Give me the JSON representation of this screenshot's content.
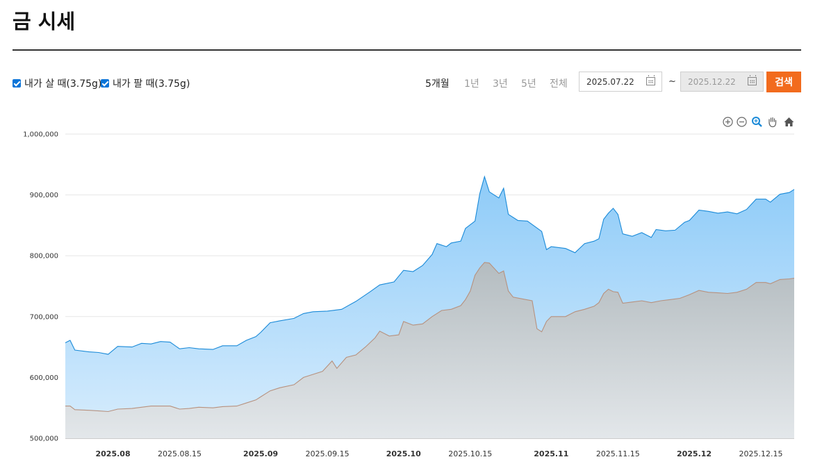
{
  "title": "금 시세",
  "options": {
    "buy_label": "내가 살 때(3.75g)",
    "sell_label": "내가 팔 때(3.75g)"
  },
  "periods": [
    {
      "label": "5개월",
      "active": true
    },
    {
      "label": "1년",
      "active": false
    },
    {
      "label": "3년",
      "active": false
    },
    {
      "label": "5년",
      "active": false
    },
    {
      "label": "전체",
      "active": false
    }
  ],
  "date_range": {
    "start": "2025.07.22",
    "separator": "~",
    "end": "2025.12.22"
  },
  "search_label": "검색",
  "toolbar_icons": [
    "zoom-in-icon",
    "zoom-out-icon",
    "magnifier-icon",
    "pan-hand-icon",
    "home-icon"
  ],
  "colors": {
    "buy_line": "#1a8ad8",
    "sell_line": "#b7917e",
    "accent": "#f26b1d"
  },
  "chart_data": {
    "type": "area",
    "x_start": "2025-07-22",
    "x_end": "2025-12-22",
    "ylim": [
      500000,
      1000000
    ],
    "y_ticks": [
      "500,000",
      "600,000",
      "700,000",
      "800,000",
      "900,000",
      "1,000,000"
    ],
    "x_ticks": [
      {
        "label": "2025.08",
        "date": "2025-08-01",
        "bold": true
      },
      {
        "label": "2025.08.15",
        "date": "2025-08-15",
        "bold": false
      },
      {
        "label": "2025.09",
        "date": "2025-09-01",
        "bold": true
      },
      {
        "label": "2025.09.15",
        "date": "2025-09-15",
        "bold": false
      },
      {
        "label": "2025.10",
        "date": "2025-10-01",
        "bold": true
      },
      {
        "label": "2025.10.15",
        "date": "2025-10-15",
        "bold": false
      },
      {
        "label": "2025.11",
        "date": "2025-11-01",
        "bold": true
      },
      {
        "label": "2025.11.15",
        "date": "2025-11-15",
        "bold": false
      },
      {
        "label": "2025.12",
        "date": "2025-12-01",
        "bold": true
      },
      {
        "label": "2025.12.15",
        "date": "2025-12-15",
        "bold": false
      }
    ],
    "series": [
      {
        "name": "내가 살 때(3.75g)",
        "points": [
          [
            "2025-07-22",
            657000
          ],
          [
            "2025-07-23",
            661000
          ],
          [
            "2025-07-24",
            645000
          ],
          [
            "2025-07-27",
            642000
          ],
          [
            "2025-07-29",
            641000
          ],
          [
            "2025-07-31",
            638000
          ],
          [
            "2025-08-02",
            651000
          ],
          [
            "2025-08-05",
            650000
          ],
          [
            "2025-08-07",
            656000
          ],
          [
            "2025-08-09",
            655000
          ],
          [
            "2025-08-11",
            659000
          ],
          [
            "2025-08-13",
            658000
          ],
          [
            "2025-08-15",
            647000
          ],
          [
            "2025-08-17",
            649000
          ],
          [
            "2025-08-19",
            647000
          ],
          [
            "2025-08-22",
            646000
          ],
          [
            "2025-08-24",
            652000
          ],
          [
            "2025-08-27",
            652000
          ],
          [
            "2025-08-29",
            661000
          ],
          [
            "2025-08-31",
            667000
          ],
          [
            "2025-09-01",
            674000
          ],
          [
            "2025-09-03",
            690000
          ],
          [
            "2025-09-05",
            693000
          ],
          [
            "2025-09-08",
            697000
          ],
          [
            "2025-09-10",
            705000
          ],
          [
            "2025-09-12",
            708000
          ],
          [
            "2025-09-15",
            709000
          ],
          [
            "2025-09-18",
            712000
          ],
          [
            "2025-09-21",
            725000
          ],
          [
            "2025-09-24",
            741000
          ],
          [
            "2025-09-26",
            752000
          ],
          [
            "2025-09-29",
            757000
          ],
          [
            "2025-10-01",
            776000
          ],
          [
            "2025-10-03",
            774000
          ],
          [
            "2025-10-05",
            784000
          ],
          [
            "2025-10-07",
            802000
          ],
          [
            "2025-10-08",
            820000
          ],
          [
            "2025-10-10",
            815000
          ],
          [
            "2025-10-11",
            821000
          ],
          [
            "2025-10-13",
            824000
          ],
          [
            "2025-10-14",
            845000
          ],
          [
            "2025-10-16",
            857000
          ],
          [
            "2025-10-17",
            902000
          ],
          [
            "2025-10-18",
            930000
          ],
          [
            "2025-10-19",
            905000
          ],
          [
            "2025-10-21",
            895000
          ],
          [
            "2025-10-22",
            911000
          ],
          [
            "2025-10-23",
            868000
          ],
          [
            "2025-10-25",
            858000
          ],
          [
            "2025-10-27",
            857000
          ],
          [
            "2025-10-30",
            840000
          ],
          [
            "2025-10-31",
            810000
          ],
          [
            "2025-11-01",
            815000
          ],
          [
            "2025-11-04",
            812000
          ],
          [
            "2025-11-06",
            805000
          ],
          [
            "2025-11-08",
            820000
          ],
          [
            "2025-11-10",
            824000
          ],
          [
            "2025-11-11",
            828000
          ],
          [
            "2025-11-12",
            860000
          ],
          [
            "2025-11-13",
            870000
          ],
          [
            "2025-11-14",
            878000
          ],
          [
            "2025-11-15",
            868000
          ],
          [
            "2025-11-16",
            836000
          ],
          [
            "2025-11-18",
            832000
          ],
          [
            "2025-11-20",
            838000
          ],
          [
            "2025-11-22",
            830000
          ],
          [
            "2025-11-23",
            843000
          ],
          [
            "2025-11-25",
            841000
          ],
          [
            "2025-11-27",
            842000
          ],
          [
            "2025-11-29",
            855000
          ],
          [
            "2025-11-30",
            858000
          ],
          [
            "2025-12-02",
            875000
          ],
          [
            "2025-12-04",
            873000
          ],
          [
            "2025-12-06",
            870000
          ],
          [
            "2025-12-08",
            872000
          ],
          [
            "2025-12-10",
            869000
          ],
          [
            "2025-12-12",
            876000
          ],
          [
            "2025-12-14",
            893000
          ],
          [
            "2025-12-16",
            893000
          ],
          [
            "2025-12-17",
            888000
          ],
          [
            "2025-12-19",
            901000
          ],
          [
            "2025-12-21",
            904000
          ],
          [
            "2025-12-22",
            909000
          ]
        ]
      },
      {
        "name": "내가 팔 때(3.75g)",
        "points": [
          [
            "2025-07-22",
            553000
          ],
          [
            "2025-07-23",
            553000
          ],
          [
            "2025-07-24",
            547000
          ],
          [
            "2025-07-27",
            546000
          ],
          [
            "2025-07-29",
            545000
          ],
          [
            "2025-07-31",
            544000
          ],
          [
            "2025-08-02",
            548000
          ],
          [
            "2025-08-05",
            549000
          ],
          [
            "2025-08-07",
            551000
          ],
          [
            "2025-08-09",
            553000
          ],
          [
            "2025-08-11",
            553000
          ],
          [
            "2025-08-13",
            553000
          ],
          [
            "2025-08-15",
            548000
          ],
          [
            "2025-08-17",
            549000
          ],
          [
            "2025-08-19",
            551000
          ],
          [
            "2025-08-22",
            550000
          ],
          [
            "2025-08-24",
            552000
          ],
          [
            "2025-08-27",
            553000
          ],
          [
            "2025-08-29",
            558000
          ],
          [
            "2025-08-31",
            563000
          ],
          [
            "2025-09-01",
            568000
          ],
          [
            "2025-09-03",
            578000
          ],
          [
            "2025-09-05",
            583000
          ],
          [
            "2025-09-08",
            588000
          ],
          [
            "2025-09-10",
            600000
          ],
          [
            "2025-09-12",
            605000
          ],
          [
            "2025-09-14",
            610000
          ],
          [
            "2025-09-16",
            627000
          ],
          [
            "2025-09-17",
            615000
          ],
          [
            "2025-09-19",
            633000
          ],
          [
            "2025-09-21",
            637000
          ],
          [
            "2025-09-23",
            650000
          ],
          [
            "2025-09-25",
            665000
          ],
          [
            "2025-09-26",
            676000
          ],
          [
            "2025-09-28",
            668000
          ],
          [
            "2025-09-30",
            670000
          ],
          [
            "2025-10-01",
            692000
          ],
          [
            "2025-10-03",
            686000
          ],
          [
            "2025-10-05",
            688000
          ],
          [
            "2025-10-07",
            700000
          ],
          [
            "2025-10-09",
            710000
          ],
          [
            "2025-10-11",
            712000
          ],
          [
            "2025-10-13",
            718000
          ],
          [
            "2025-10-14",
            728000
          ],
          [
            "2025-10-15",
            742000
          ],
          [
            "2025-10-16",
            768000
          ],
          [
            "2025-10-17",
            780000
          ],
          [
            "2025-10-18",
            789000
          ],
          [
            "2025-10-19",
            788000
          ],
          [
            "2025-10-21",
            771000
          ],
          [
            "2025-10-22",
            775000
          ],
          [
            "2025-10-23",
            742000
          ],
          [
            "2025-10-24",
            732000
          ],
          [
            "2025-10-26",
            729000
          ],
          [
            "2025-10-28",
            726000
          ],
          [
            "2025-10-29",
            680000
          ],
          [
            "2025-10-30",
            675000
          ],
          [
            "2025-10-31",
            692000
          ],
          [
            "2025-11-01",
            700000
          ],
          [
            "2025-11-04",
            700000
          ],
          [
            "2025-11-06",
            708000
          ],
          [
            "2025-11-08",
            712000
          ],
          [
            "2025-11-10",
            717000
          ],
          [
            "2025-11-11",
            723000
          ],
          [
            "2025-11-12",
            738000
          ],
          [
            "2025-11-13",
            745000
          ],
          [
            "2025-11-14",
            741000
          ],
          [
            "2025-11-15",
            740000
          ],
          [
            "2025-11-16",
            722000
          ],
          [
            "2025-11-18",
            724000
          ],
          [
            "2025-11-20",
            726000
          ],
          [
            "2025-11-22",
            723000
          ],
          [
            "2025-11-24",
            726000
          ],
          [
            "2025-11-26",
            728000
          ],
          [
            "2025-11-28",
            730000
          ],
          [
            "2025-11-30",
            736000
          ],
          [
            "2025-12-02",
            743000
          ],
          [
            "2025-12-04",
            740000
          ],
          [
            "2025-12-06",
            739000
          ],
          [
            "2025-12-08",
            738000
          ],
          [
            "2025-12-10",
            740000
          ],
          [
            "2025-12-12",
            745000
          ],
          [
            "2025-12-14",
            756000
          ],
          [
            "2025-12-16",
            756000
          ],
          [
            "2025-12-17",
            754000
          ],
          [
            "2025-12-19",
            761000
          ],
          [
            "2025-12-21",
            762000
          ],
          [
            "2025-12-22",
            763000
          ]
        ]
      }
    ]
  }
}
